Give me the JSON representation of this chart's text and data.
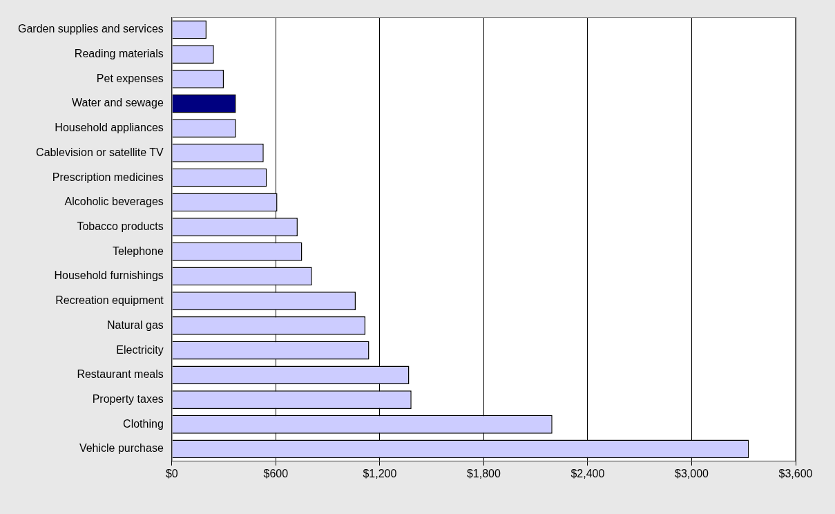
{
  "chart_data": {
    "type": "bar",
    "orientation": "horizontal",
    "categories": [
      "Garden supplies and services",
      "Reading materials",
      "Pet expenses",
      "Water and sewage",
      "Household appliances",
      "Cablevision or satellite TV",
      "Prescription medicines",
      "Alcoholic beverages",
      "Tobacco products",
      "Telephone",
      "Household furnishings",
      "Recreation equipment",
      "Natural gas",
      "Electricity",
      "Restaurant meals",
      "Property taxes",
      "Clothing",
      "Vehicle purchase"
    ],
    "values": [
      200,
      243,
      300,
      370,
      370,
      530,
      548,
      609,
      726,
      752,
      809,
      1061,
      1117,
      1139,
      1370,
      1383,
      2196,
      3330
    ],
    "colors": [
      "#ccccff",
      "#ccccff",
      "#ccccff",
      "#000080",
      "#ccccff",
      "#ccccff",
      "#ccccff",
      "#ccccff",
      "#ccccff",
      "#ccccff",
      "#ccccff",
      "#ccccff",
      "#ccccff",
      "#ccccff",
      "#ccccff",
      "#ccccff",
      "#ccccff",
      "#ccccff"
    ],
    "xlim": [
      0,
      3600
    ],
    "xticks": [
      {
        "value": 0,
        "label": "$0"
      },
      {
        "value": 600,
        "label": "$600"
      },
      {
        "value": 1200,
        "label": "$1,200"
      },
      {
        "value": 1800,
        "label": "$1,800"
      },
      {
        "value": 2400,
        "label": "$2,400"
      },
      {
        "value": 3000,
        "label": "$3,000"
      },
      {
        "value": 3600,
        "label": "$3,600"
      }
    ],
    "grid": "x",
    "legend": false
  }
}
